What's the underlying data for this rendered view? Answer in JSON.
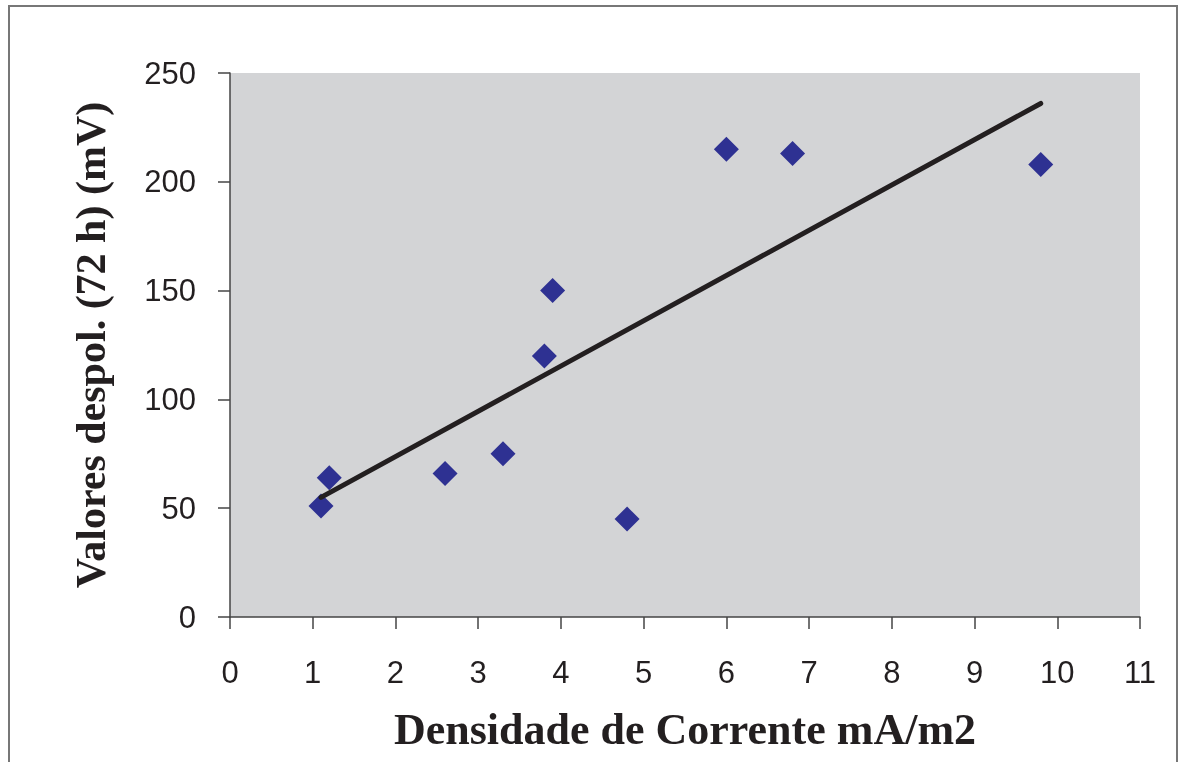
{
  "chart_data": {
    "type": "scatter",
    "xlabel": "Densidade de Corrente mA/m2",
    "ylabel": "Valores despol. (72 h) (mV)",
    "xlim": [
      0,
      11
    ],
    "xticks": [
      0,
      1,
      2,
      3,
      4,
      5,
      6,
      7,
      8,
      9,
      10,
      11
    ],
    "ylim": [
      0,
      250
    ],
    "yticks": [
      0,
      50,
      100,
      150,
      200,
      250
    ],
    "grid": false,
    "marker": "diamond",
    "series": [
      {
        "color": "#2e3192",
        "x": [
          1.1,
          1.2,
          2.6,
          3.3,
          3.8,
          3.9,
          4.8,
          6,
          6.8,
          9.8
        ],
        "values": [
          51,
          64,
          66,
          75,
          120,
          150,
          45,
          215,
          213,
          208
        ]
      },
      {
        "type": "line",
        "color": "#231f20",
        "marker": "none",
        "x": [
          1.1,
          9.8
        ],
        "values": [
          55,
          236
        ]
      }
    ]
  }
}
